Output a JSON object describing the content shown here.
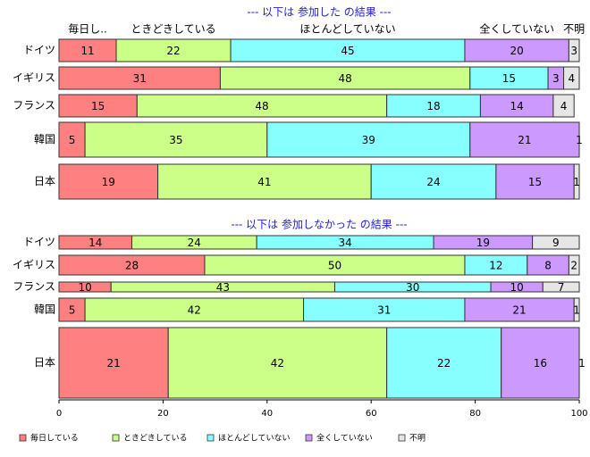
{
  "chart_data": [
    {
      "type": "bar",
      "title": "--- 以下は 参加した の結果 ---",
      "categories": [
        "ドイツ",
        "イギリス",
        "フランス",
        "韓国",
        "日本"
      ],
      "xlim": [
        0,
        100
      ],
      "series": [
        {
          "name": "毎日し..",
          "color": "#ff8080",
          "values": [
            11,
            31,
            15,
            5,
            19
          ]
        },
        {
          "name": "ときどきしている",
          "color": "#ccff88",
          "values": [
            22,
            48,
            48,
            35,
            41
          ]
        },
        {
          "name": "ほとんどしていない",
          "color": "#88ffff",
          "values": [
            45,
            15,
            18,
            39,
            24
          ]
        },
        {
          "name": "全くしていない",
          "color": "#cc99ff",
          "values": [
            20,
            3,
            14,
            21,
            15
          ]
        },
        {
          "name": "不明",
          "color": "#e6e6e6",
          "values": [
            3,
            4,
            4,
            1,
            1
          ]
        }
      ]
    },
    {
      "type": "bar",
      "title": "--- 以下は 参加しなかった の結果 ---",
      "categories": [
        "ドイツ",
        "イギリス",
        "フランス",
        "韓国",
        "日本"
      ],
      "xlim": [
        0,
        100
      ],
      "xticks": [
        0,
        20,
        40,
        60,
        80,
        100
      ],
      "series": [
        {
          "name": "毎日している",
          "color": "#ff8080",
          "values": [
            14,
            28,
            10,
            5,
            21
          ]
        },
        {
          "name": "ときどきしている",
          "color": "#ccff88",
          "values": [
            24,
            50,
            43,
            42,
            42
          ]
        },
        {
          "name": "ほとんどしていない",
          "color": "#88ffff",
          "values": [
            34,
            12,
            30,
            31,
            22
          ]
        },
        {
          "name": "全くしていない",
          "color": "#cc99ff",
          "values": [
            19,
            8,
            10,
            21,
            16
          ]
        },
        {
          "name": "不明",
          "color": "#e6e6e6",
          "values": [
            9,
            2,
            7,
            1,
            1
          ]
        }
      ]
    }
  ]
}
